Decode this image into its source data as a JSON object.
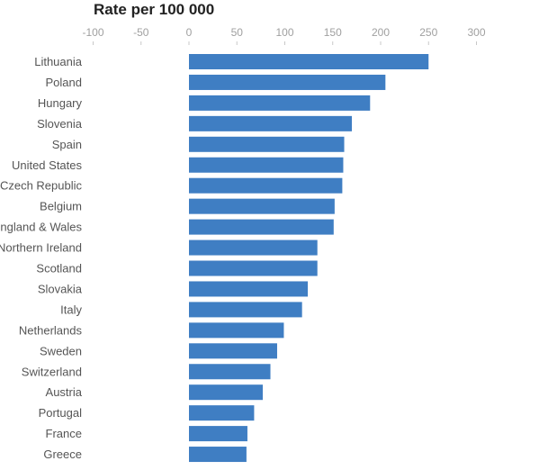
{
  "chart_data": {
    "type": "bar",
    "orientation": "horizontal",
    "title": "Rate per 100 000",
    "xlabel": "",
    "ylabel": "",
    "xlim": [
      -100,
      300
    ],
    "xticks": [
      -100,
      -50,
      0,
      50,
      100,
      150,
      200,
      250,
      300
    ],
    "tick_labels": [
      "-100",
      "-50",
      "0",
      "50",
      "100",
      "150",
      "200",
      "250",
      "300"
    ],
    "grid": false,
    "categories": [
      "Lithuania",
      "Poland",
      "Hungary",
      "Slovenia",
      "Spain",
      "United States",
      "Czech Republic",
      "Belgium",
      "England & Wales",
      "Northern Ireland",
      "Scotland",
      "Slovakia",
      "Italy",
      "Netherlands",
      "Sweden",
      "Switzerland",
      "Austria",
      "Portugal",
      "France",
      "Greece"
    ],
    "values": [
      250,
      205,
      189,
      170,
      162,
      161,
      160,
      152,
      151,
      134,
      134,
      124,
      118,
      99,
      92,
      85,
      77,
      68,
      61,
      60
    ],
    "bar_color": "#3f7ec3"
  }
}
